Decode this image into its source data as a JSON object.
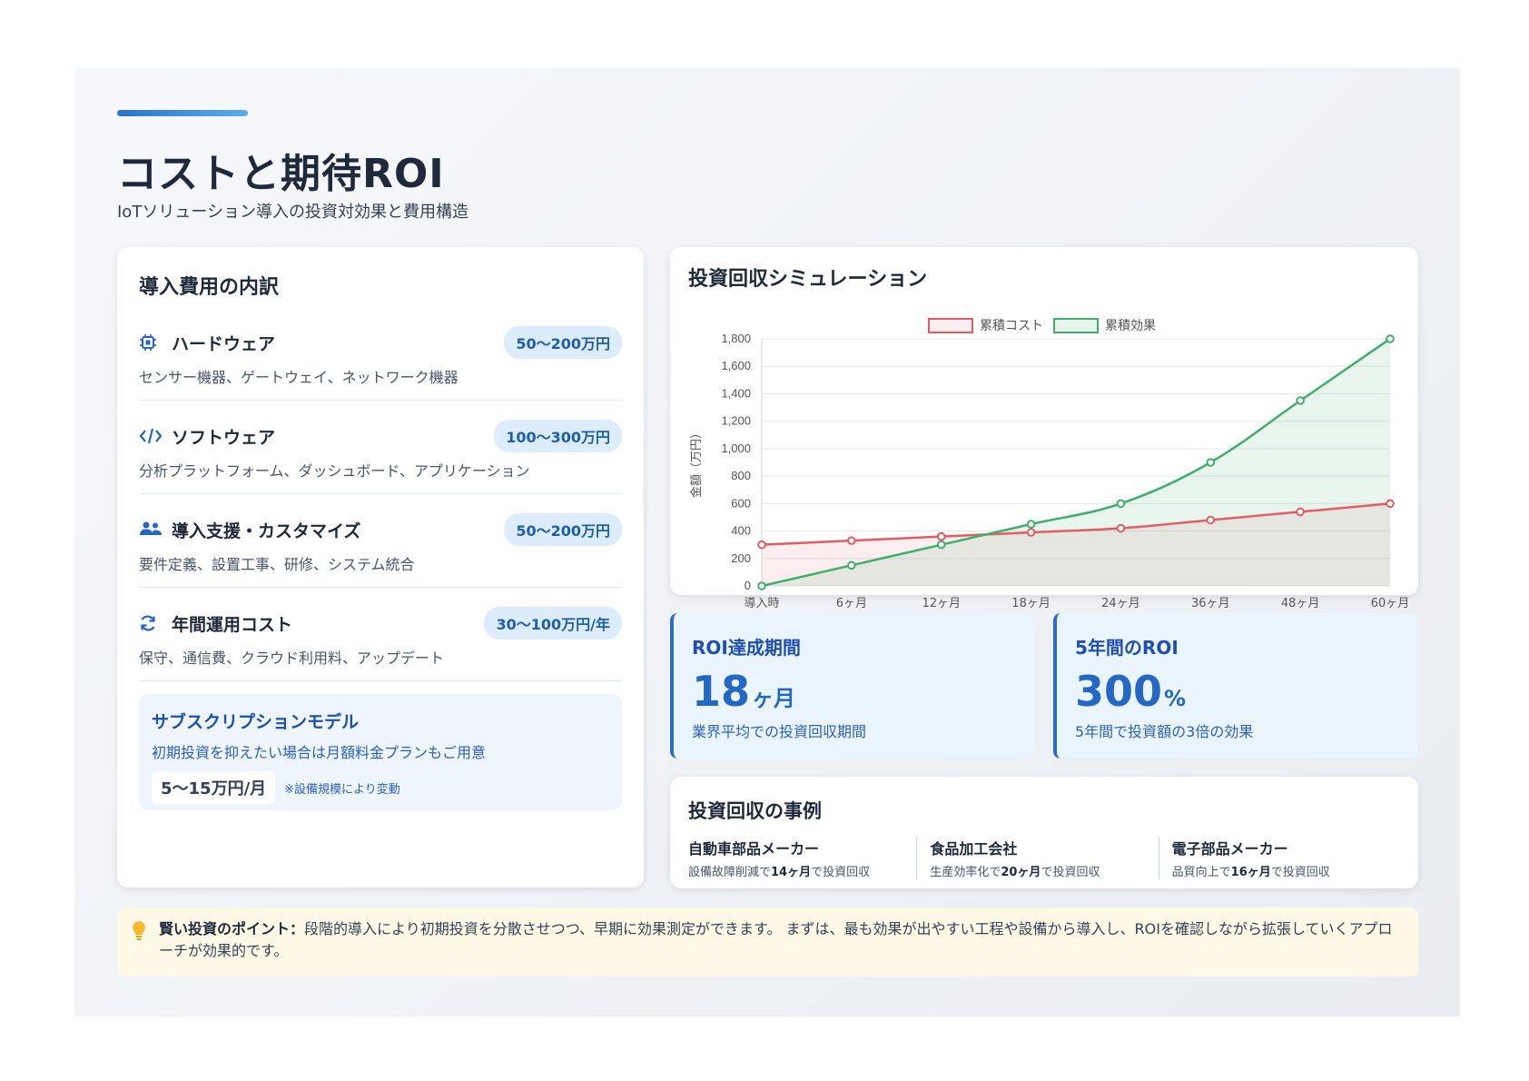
{
  "header": {
    "title": "コストと期待ROI",
    "subtitle": "IoTソリューション導入の投資対効果と費用構造"
  },
  "cost_breakdown": {
    "title": "導入費用の内訳",
    "items": [
      {
        "icon": "chip-icon",
        "name": "ハードウェア",
        "price": "50〜200万円",
        "desc": "センサー機器、ゲートウェイ、ネットワーク機器"
      },
      {
        "icon": "code-icon",
        "name": "ソフトウェア",
        "price": "100〜300万円",
        "desc": "分析プラットフォーム、ダッシュボード、アプリケーション"
      },
      {
        "icon": "users-icon",
        "name": "導入支援・カスタマイズ",
        "price": "50〜200万円",
        "desc": "要件定義、設置工事、研修、システム統合"
      },
      {
        "icon": "refresh-icon",
        "name": "年間運用コスト",
        "price": "30〜100万円/年",
        "desc": "保守、通信費、クラウド利用料、アップデート"
      }
    ],
    "subscription": {
      "title": "サブスクリプションモデル",
      "text": "初期投資を抑えたい場合は月額料金プランもご用意",
      "price": "5〜15万円/月",
      "note": "※設備規模により変動"
    }
  },
  "chart_data": {
    "type": "line",
    "title": "投資回収シミュレーション",
    "categories": [
      "導入時",
      "6ヶ月",
      "12ヶ月",
      "18ヶ月",
      "24ヶ月",
      "36ヶ月",
      "48ヶ月",
      "60ヶ月"
    ],
    "series": [
      {
        "name": "累積コスト",
        "values": [
          300,
          330,
          360,
          390,
          420,
          480,
          540,
          600
        ],
        "color": "#e25c63",
        "fill": "rgba(226,92,99,0.10)"
      },
      {
        "name": "累積効果",
        "values": [
          0,
          150,
          300,
          450,
          600,
          900,
          1350,
          1800
        ],
        "color": "#3fae6b",
        "fill": "rgba(63,174,107,0.12)"
      }
    ],
    "ylabel": "金額（万円）",
    "xlabel": "",
    "ylim": [
      0,
      1800
    ],
    "yticks": [
      "0",
      "200",
      "400",
      "600",
      "800",
      "1,000",
      "1,200",
      "1,400",
      "1,600",
      "1,800"
    ],
    "legend": "top-center",
    "grid": true
  },
  "kpis": {
    "roi_period": {
      "label": "ROI達成期間",
      "value": "18",
      "unit": "ヶ月",
      "desc": "業界平均での投資回収期間"
    },
    "roi_5y": {
      "label": "5年間のROI",
      "value": "300",
      "unit": "%",
      "desc": "5年間で投資額の3倍の効果"
    }
  },
  "cases": {
    "title": "投資回収の事例",
    "items": [
      {
        "name": "自動車部品メーカー",
        "pre": "設備故障削減で",
        "highlight": "14ヶ月",
        "post": "で投資回収"
      },
      {
        "name": "食品加工会社",
        "pre": "生産効率化で",
        "highlight": "20ヶ月",
        "post": "で投資回収"
      },
      {
        "name": "電子部品メーカー",
        "pre": "品質向上で",
        "highlight": "16ヶ月",
        "post": "で投資回収"
      }
    ]
  },
  "tip": {
    "icon": "lightbulb-icon",
    "label": "賢い投資のポイント：",
    "text": "段階的導入により初期投資を分散させつつ、早期に効果測定ができます。 まずは、最も効果が出やすい工程や設備から導入し、ROIを確認しながら拡張していくアプローチが効果的です。"
  }
}
